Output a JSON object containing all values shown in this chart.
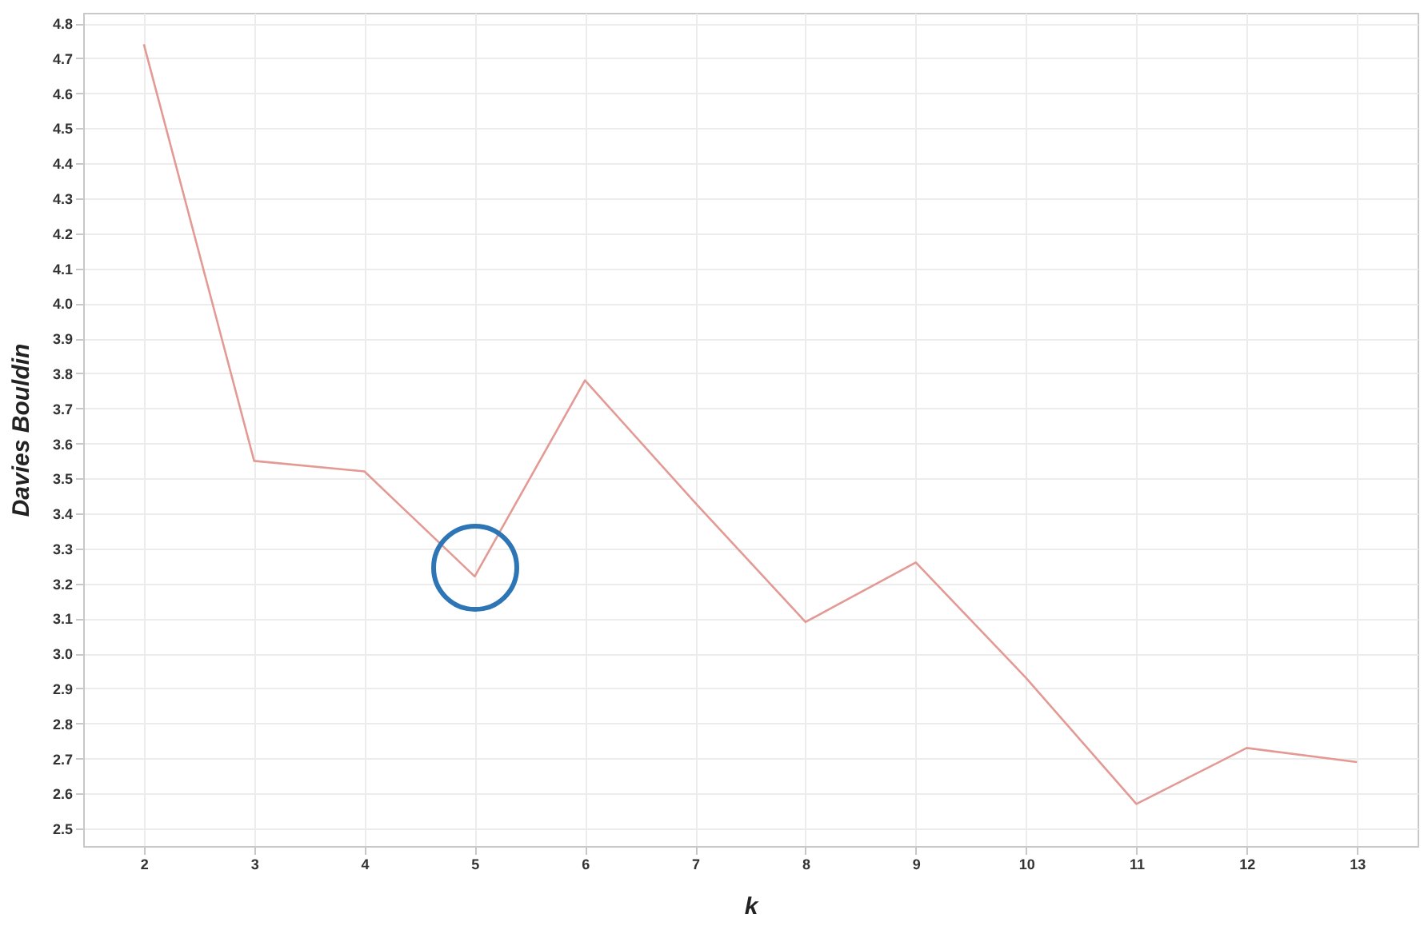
{
  "chart_data": {
    "type": "line",
    "xlabel": "k",
    "ylabel": "Davies Bouldin",
    "x": [
      2,
      3,
      4,
      5,
      6,
      7,
      8,
      9,
      10,
      11,
      12,
      13
    ],
    "series": [
      {
        "color": "#e39a94",
        "values": [
          4.74,
          3.55,
          3.52,
          3.22,
          3.78,
          3.43,
          3.09,
          3.26,
          2.93,
          2.57,
          2.73,
          2.69
        ]
      }
    ],
    "xlim": [
      1.45,
      13.55
    ],
    "xticks": [
      2,
      3,
      4,
      5,
      6,
      7,
      8,
      9,
      10,
      11,
      12,
      13
    ],
    "ylim": [
      2.45,
      4.83
    ],
    "yticks": [
      {
        "value": 2.5,
        "label": "2.5"
      },
      {
        "value": 2.6,
        "label": "2.6"
      },
      {
        "value": 2.7,
        "label": "2.7"
      },
      {
        "value": 2.8,
        "label": "2.8"
      },
      {
        "value": 2.9,
        "label": "2.9"
      },
      {
        "value": 3.0,
        "label": "3.0"
      },
      {
        "value": 3.1,
        "label": "3.1"
      },
      {
        "value": 3.2,
        "label": "3.2"
      },
      {
        "value": 3.3,
        "label": "3.3"
      },
      {
        "value": 3.4,
        "label": "3.4"
      },
      {
        "value": 3.5,
        "label": "3.5"
      },
      {
        "value": 3.6,
        "label": "3.6"
      },
      {
        "value": 3.7,
        "label": "3.7"
      },
      {
        "value": 3.8,
        "label": "3.8"
      },
      {
        "value": 3.9,
        "label": "3.9"
      },
      {
        "value": 4.0,
        "label": "4.0"
      },
      {
        "value": 4.1,
        "label": "4.1"
      },
      {
        "value": 4.2,
        "label": "4.2"
      },
      {
        "value": 4.3,
        "label": "4.3"
      },
      {
        "value": 4.4,
        "label": "4.4"
      },
      {
        "value": 4.5,
        "label": "4.5"
      },
      {
        "value": 4.6,
        "label": "4.6"
      },
      {
        "value": 4.7,
        "label": "4.7"
      },
      {
        "value": 4.8,
        "label": "4.8"
      }
    ],
    "grid": true,
    "marker": "none",
    "line_style": "solid"
  }
}
